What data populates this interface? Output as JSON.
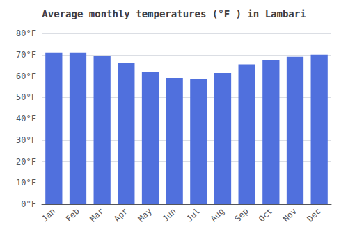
{
  "chart_data": {
    "type": "bar",
    "title": "Average monthly temperatures (°F ) in Lambari",
    "categories": [
      "Jan",
      "Feb",
      "Mar",
      "Apr",
      "May",
      "Jun",
      "Jul",
      "Aug",
      "Sep",
      "Oct",
      "Nov",
      "Dec"
    ],
    "values": [
      71,
      71,
      69.5,
      66,
      62,
      59,
      58.5,
      61.5,
      65.5,
      67.5,
      69,
      70
    ],
    "ylim": [
      0,
      80
    ],
    "yticks": [
      {
        "value": 0,
        "label": "0°F"
      },
      {
        "value": 10,
        "label": "10°F"
      },
      {
        "value": 20,
        "label": "20°F"
      },
      {
        "value": 30,
        "label": "30°F"
      },
      {
        "value": 40,
        "label": "40°F"
      },
      {
        "value": 50,
        "label": "50°F"
      },
      {
        "value": 60,
        "label": "60°F"
      },
      {
        "value": 70,
        "label": "70°F"
      },
      {
        "value": 80,
        "label": "80°F"
      }
    ],
    "grid": true
  }
}
